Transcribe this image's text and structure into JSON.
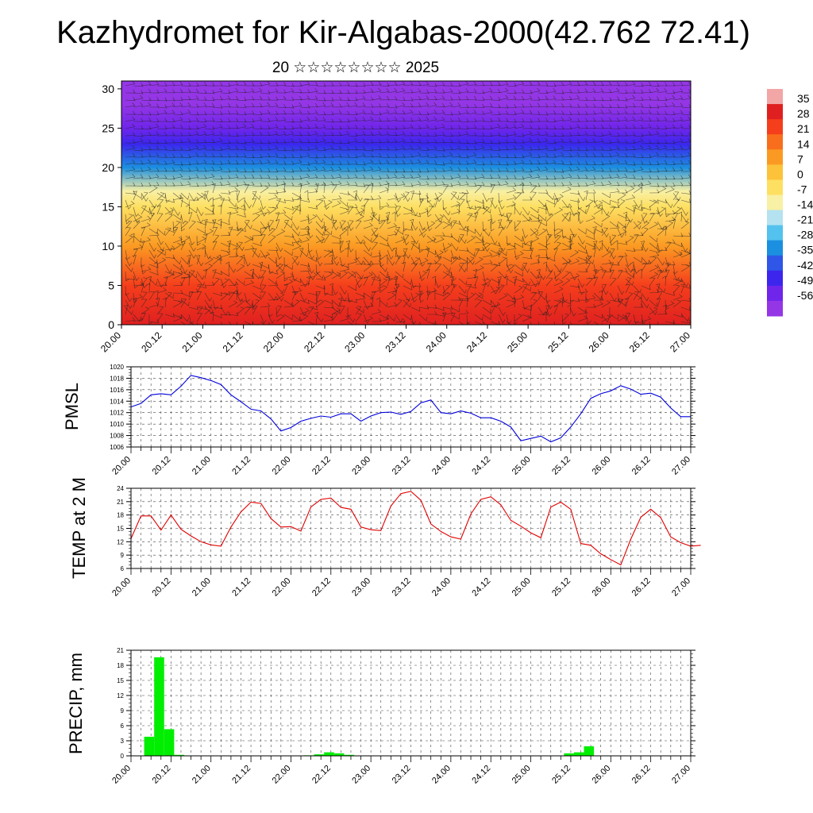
{
  "figure": {
    "title": "Kazhydromet for Kir-Algabas-2000(42.762 72.41)",
    "subtitle": "20 ☆☆☆☆☆☆☆☆ 2025"
  },
  "chart_data": [
    {
      "type": "heatmap",
      "title": "",
      "xlabel": "",
      "ylabel": "",
      "x_ticks": [
        "20.00",
        "20.12",
        "21.00",
        "21.12",
        "22.00",
        "22.12",
        "23.00",
        "23.12",
        "24.00",
        "24.12",
        "25.00",
        "25.12",
        "26.00",
        "26.12",
        "27.00"
      ],
      "y_ticks": [
        0,
        5,
        10,
        15,
        20,
        25,
        30
      ],
      "ylim": [
        0,
        31
      ],
      "colorbar": {
        "labels": [
          "35",
          "28",
          "21",
          "14",
          "7",
          "0",
          "-7",
          "-14",
          "-21",
          "-28",
          "-35",
          "-42",
          "-49",
          "-56"
        ],
        "colors": [
          "#f2a6a6",
          "#e02020",
          "#f53e1c",
          "#f86e1c",
          "#fb9a22",
          "#fcc23a",
          "#fde062",
          "#f8f0a4",
          "#b5e2f0",
          "#54c2ee",
          "#1b8fe0",
          "#2f56e6",
          "#3c26ee",
          "#6f25ea",
          "#9436e6"
        ]
      },
      "temperature_profile_c": {
        "heights": [
          0,
          5,
          10,
          15,
          17,
          20,
          23,
          25,
          28,
          31
        ],
        "values": [
          28,
          22,
          10,
          -3,
          -12,
          -30,
          -45,
          -55,
          -58,
          -60
        ]
      },
      "grid": false
    },
    {
      "type": "line",
      "title": "",
      "ylabel": "PMSL",
      "xlabel": "",
      "x_ticks": [
        "20.00",
        "20.12",
        "21.00",
        "21.12",
        "22.00",
        "22.12",
        "23.00",
        "23.12",
        "24.00",
        "24.12",
        "25.00",
        "25.12",
        "26.00",
        "26.12",
        "27.00"
      ],
      "y_ticks": [
        1006,
        1008,
        1010,
        1012,
        1014,
        1016,
        1018,
        1020
      ],
      "ylim": [
        1006,
        1020
      ],
      "color": "#0000dd",
      "x_step_days": 0.125,
      "values": [
        1013,
        1013.6,
        1015.1,
        1015.3,
        1015.1,
        1016.6,
        1018.5,
        1018.1,
        1017.6,
        1016.9,
        1015.1,
        1013.9,
        1012.6,
        1012.3,
        1010.9,
        1008.8,
        1009.4,
        1010.5,
        1011,
        1011.4,
        1011.2,
        1011.8,
        1011.8,
        1010.5,
        1011.4,
        1012,
        1012.1,
        1011.7,
        1012.2,
        1013.7,
        1014.2,
        1012,
        1011.8,
        1012.3,
        1011.9,
        1011.1,
        1011.1,
        1010.5,
        1009.5,
        1007.1,
        1007.5,
        1007.9,
        1006.9,
        1007.6,
        1009.5,
        1011.8,
        1014.5,
        1015.3,
        1015.8,
        1016.7,
        1016.1,
        1015.2,
        1015.4,
        1014.7,
        1012.8,
        1011.3,
        1011.3
      ],
      "grid": true
    },
    {
      "type": "line",
      "title": "",
      "ylabel": "TEMP at 2 M",
      "xlabel": "",
      "x_ticks": [
        "20.00",
        "20.12",
        "21.00",
        "21.12",
        "22.00",
        "22.12",
        "23.00",
        "23.12",
        "24.00",
        "24.12",
        "25.00",
        "25.12",
        "26.00",
        "26.12",
        "27.00"
      ],
      "y_ticks": [
        6,
        9,
        12,
        15,
        18,
        21,
        24
      ],
      "ylim": [
        6,
        24
      ],
      "color": "#e00000",
      "x_step_days": 0.125,
      "values": [
        12.7,
        17.8,
        17.8,
        14.6,
        18,
        14.8,
        13.3,
        12,
        11.3,
        11,
        15.3,
        18.7,
        20.9,
        20.6,
        17.2,
        15.3,
        15.4,
        14.4,
        19.8,
        21.5,
        21.8,
        19.7,
        19.3,
        15.3,
        14.7,
        14.5,
        20,
        22.8,
        23.3,
        21.3,
        16,
        14.3,
        13.1,
        12.6,
        18.2,
        21.5,
        22.1,
        20.3,
        16.8,
        15.5,
        14,
        12.9,
        19.8,
        20.9,
        19.3,
        11.6,
        11.2,
        9.3,
        8,
        6.8,
        12.6,
        17.5,
        19.3,
        17.4,
        13.1,
        11.8,
        11,
        11.2
      ],
      "grid": true
    },
    {
      "type": "bar",
      "title": "",
      "ylabel": "PRECIP, mm",
      "xlabel": "",
      "x_ticks": [
        "20.00",
        "20.12",
        "21.00",
        "21.12",
        "22.00",
        "22.12",
        "23.00",
        "23.12",
        "24.00",
        "24.12",
        "25.00",
        "25.12",
        "26.00",
        "26.12",
        "27.00"
      ],
      "y_ticks": [
        0,
        3,
        6,
        9,
        12,
        15,
        18,
        21
      ],
      "ylim": [
        0,
        21
      ],
      "color": "#00ee00",
      "x_step_days": 0.125,
      "values": [
        0,
        3.8,
        19.6,
        5.3,
        0.2,
        0,
        0,
        0,
        0,
        0,
        0,
        0,
        0,
        0,
        0,
        0,
        0,
        0.1,
        0.3,
        0.7,
        0.5,
        0.2,
        0,
        0,
        0,
        0,
        0,
        0,
        0,
        0,
        0,
        0,
        0,
        0,
        0,
        0,
        0,
        0,
        0,
        0,
        0,
        0,
        0,
        0.5,
        0.7,
        1.9,
        0,
        0,
        0,
        0,
        0,
        0,
        0,
        0,
        0,
        0
      ],
      "grid": true
    }
  ]
}
